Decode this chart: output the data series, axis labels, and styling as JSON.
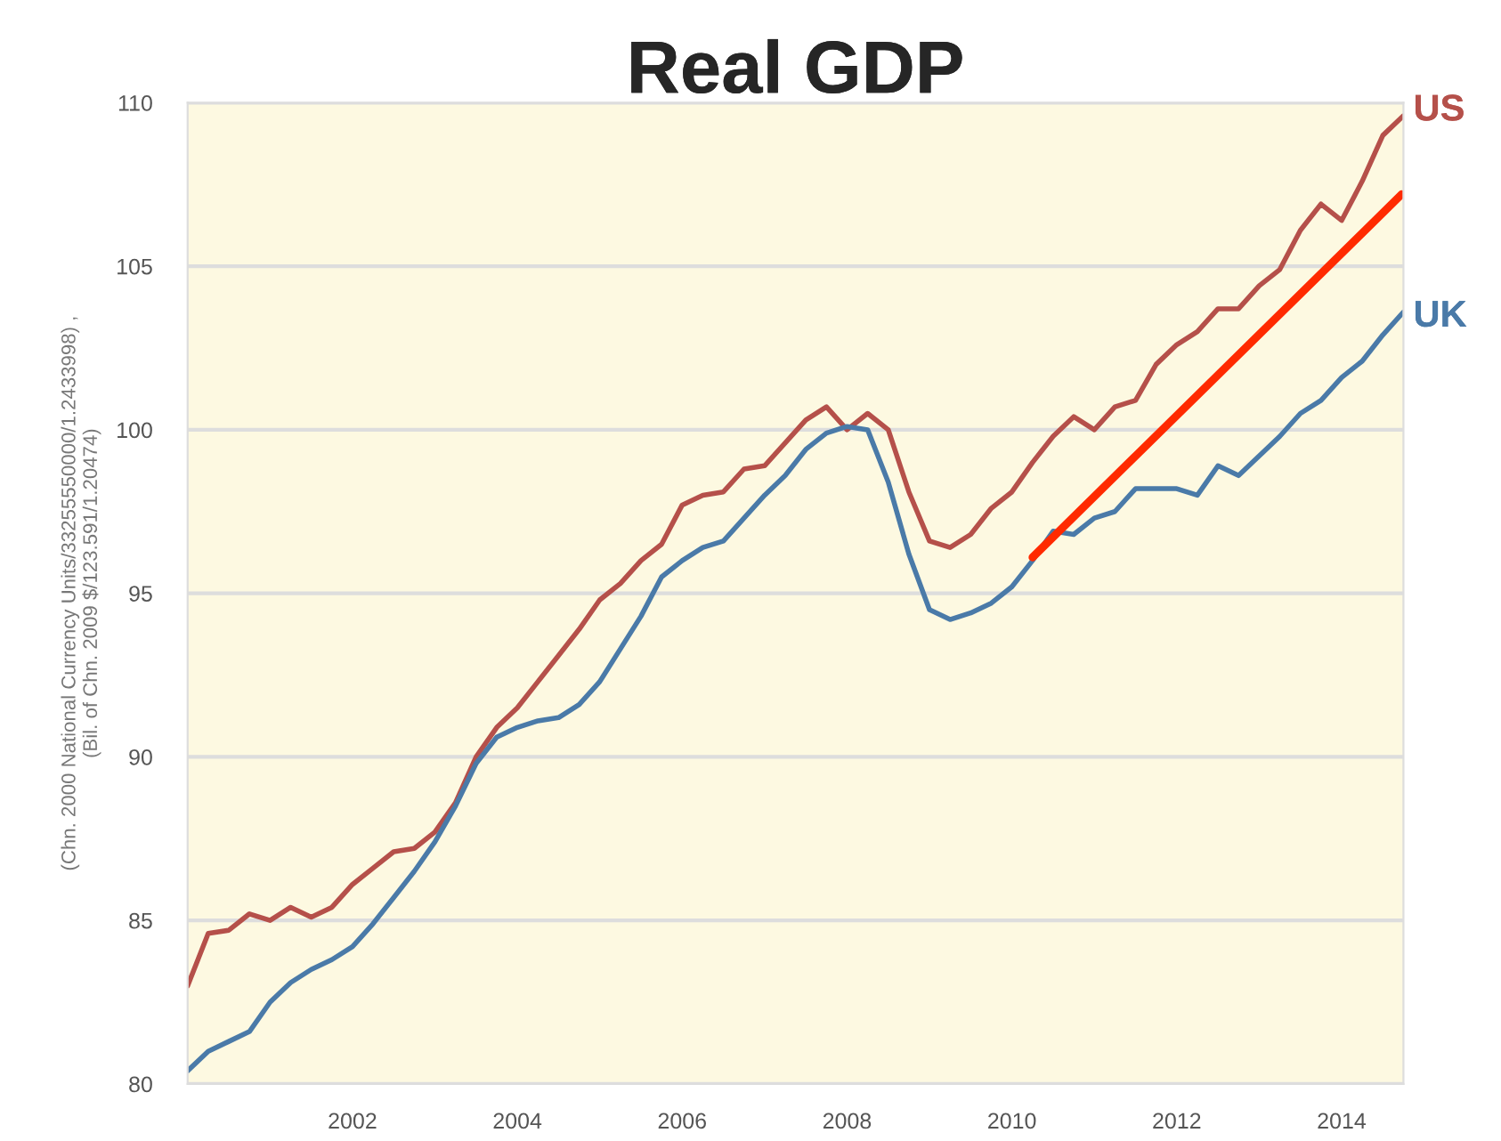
{
  "chart_data": {
    "type": "line",
    "title": "Real GDP",
    "ylabel": "(Chn. 2000 National Currency Units/33255550000/1.2433998) ,\n(Bil. of Chn. 2009 $/123.591/1.20474)",
    "x": [
      2000.0,
      2000.25,
      2000.5,
      2000.75,
      2001.0,
      2001.25,
      2001.5,
      2001.75,
      2002.0,
      2002.25,
      2002.5,
      2002.75,
      2003.0,
      2003.25,
      2003.5,
      2003.75,
      2004.0,
      2004.25,
      2004.5,
      2004.75,
      2005.0,
      2005.25,
      2005.5,
      2005.75,
      2006.0,
      2006.25,
      2006.5,
      2006.75,
      2007.0,
      2007.25,
      2007.5,
      2007.75,
      2008.0,
      2008.25,
      2008.5,
      2008.75,
      2009.0,
      2009.25,
      2009.5,
      2009.75,
      2010.0,
      2010.25,
      2010.5,
      2010.75,
      2011.0,
      2011.25,
      2011.5,
      2011.75,
      2012.0,
      2012.25,
      2012.5,
      2012.75,
      2013.0,
      2013.25,
      2013.5,
      2013.75,
      2014.0,
      2014.25,
      2014.5,
      2014.75
    ],
    "series": [
      {
        "name": "US",
        "color": "#b5504a",
        "values": [
          83.0,
          84.6,
          84.7,
          85.2,
          85.0,
          85.4,
          85.1,
          85.4,
          86.1,
          86.6,
          87.1,
          87.2,
          87.7,
          88.6,
          90.0,
          90.9,
          91.5,
          92.3,
          93.1,
          93.9,
          94.8,
          95.3,
          96.0,
          96.5,
          97.7,
          98.0,
          98.1,
          98.8,
          98.9,
          99.6,
          100.3,
          100.7,
          100.0,
          100.5,
          100.0,
          98.1,
          96.6,
          96.4,
          96.8,
          97.6,
          98.1,
          99.0,
          99.8,
          100.4,
          100.0,
          100.7,
          100.9,
          102.0,
          102.6,
          103.0,
          103.7,
          103.7,
          104.4,
          104.9,
          106.1,
          106.9,
          106.4,
          107.6,
          109.0,
          109.6
        ]
      },
      {
        "name": "UK",
        "color": "#4a7aa8",
        "values": [
          80.4,
          81.0,
          81.3,
          81.6,
          82.5,
          83.1,
          83.5,
          83.8,
          84.2,
          84.9,
          85.7,
          86.5,
          87.4,
          88.5,
          89.8,
          90.6,
          90.9,
          91.1,
          91.2,
          91.6,
          92.3,
          93.3,
          94.3,
          95.5,
          96.0,
          96.4,
          96.6,
          97.3,
          98.0,
          98.6,
          99.4,
          99.9,
          100.1,
          100.0,
          98.4,
          96.2,
          94.5,
          94.2,
          94.4,
          94.7,
          95.2,
          96.0,
          96.9,
          96.8,
          97.3,
          97.5,
          98.2,
          98.2,
          98.2,
          98.0,
          98.9,
          98.6,
          99.2,
          99.8,
          100.5,
          100.9,
          101.6,
          102.1,
          102.9,
          103.6
        ]
      },
      {
        "type": "line",
        "color": "#ff2a00",
        "x": [
          2010.25,
          2014.73
        ],
        "values": [
          96.1,
          107.2
        ]
      }
    ],
    "xlim": [
      2000.0,
      2014.75
    ],
    "xticks": [
      2002,
      2004,
      2006,
      2008,
      2010,
      2012,
      2014
    ],
    "ylim": [
      80,
      110
    ],
    "yticks": [
      80,
      85,
      90,
      95,
      100,
      105,
      110
    ],
    "grid": "y",
    "marker": "none",
    "line_style": "solid",
    "legend": false
  }
}
